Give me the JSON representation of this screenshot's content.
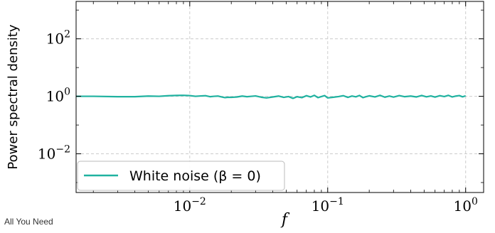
{
  "footer_note": "All You Need",
  "chart_data": {
    "type": "line",
    "xlabel": "f",
    "ylabel": "Power spectral density",
    "xscale": "log",
    "yscale": "log",
    "xlim": [
      0.0015,
      1.35
    ],
    "ylim": [
      0.00045,
      2000
    ],
    "grid": true,
    "legend_position": "lower-left",
    "x_ticks": [
      {
        "value": 0.01,
        "base": "10",
        "exponent": "−2"
      },
      {
        "value": 0.1,
        "base": "10",
        "exponent": "−1"
      },
      {
        "value": 1,
        "base": "10",
        "exponent": "0"
      }
    ],
    "y_ticks": [
      {
        "value": 0.01,
        "base": "10",
        "exponent": "−2"
      },
      {
        "value": 1,
        "base": "10",
        "exponent": "0"
      },
      {
        "value": 100,
        "base": "10",
        "exponent": "2"
      }
    ],
    "series": [
      {
        "name": "White noise (β = 0)",
        "color": "#20b2a0",
        "x": [
          0.0015,
          0.002,
          0.003,
          0.004,
          0.005,
          0.006,
          0.007,
          0.008,
          0.009,
          0.01,
          0.011,
          0.012,
          0.013,
          0.014,
          0.015,
          0.016,
          0.017,
          0.018,
          0.019,
          0.02,
          0.022,
          0.024,
          0.026,
          0.028,
          0.03,
          0.033,
          0.036,
          0.04,
          0.044,
          0.048,
          0.052,
          0.056,
          0.06,
          0.065,
          0.07,
          0.075,
          0.08,
          0.085,
          0.09,
          0.095,
          0.1,
          0.11,
          0.12,
          0.13,
          0.14,
          0.15,
          0.16,
          0.17,
          0.18,
          0.19,
          0.2,
          0.22,
          0.24,
          0.26,
          0.28,
          0.3,
          0.33,
          0.36,
          0.4,
          0.44,
          0.48,
          0.52,
          0.56,
          0.6,
          0.65,
          0.7,
          0.75,
          0.8,
          0.85,
          0.9,
          0.95,
          1.0
        ],
        "y": [
          1.0,
          1.0,
          0.97,
          0.97,
          1.02,
          1.0,
          1.05,
          1.07,
          1.08,
          1.06,
          1.0,
          1.03,
          1.05,
          0.97,
          1.0,
          1.02,
          0.95,
          0.9,
          0.93,
          0.92,
          0.95,
          1.02,
          0.97,
          1.0,
          1.03,
          0.93,
          0.88,
          0.95,
          1.02,
          0.92,
          0.98,
          0.85,
          0.97,
          0.9,
          1.05,
          0.95,
          1.08,
          0.9,
          0.98,
          1.06,
          0.88,
          0.93,
          0.98,
          1.05,
          0.92,
          1.02,
          0.96,
          1.07,
          0.9,
          0.97,
          1.04,
          0.95,
          1.08,
          0.93,
          1.02,
          0.94,
          1.06,
          0.97,
          1.02,
          0.95,
          1.07,
          0.96,
          1.03,
          0.94,
          1.05,
          0.98,
          1.08,
          0.95,
          1.02,
          1.06,
          0.96,
          1.04
        ]
      }
    ]
  }
}
